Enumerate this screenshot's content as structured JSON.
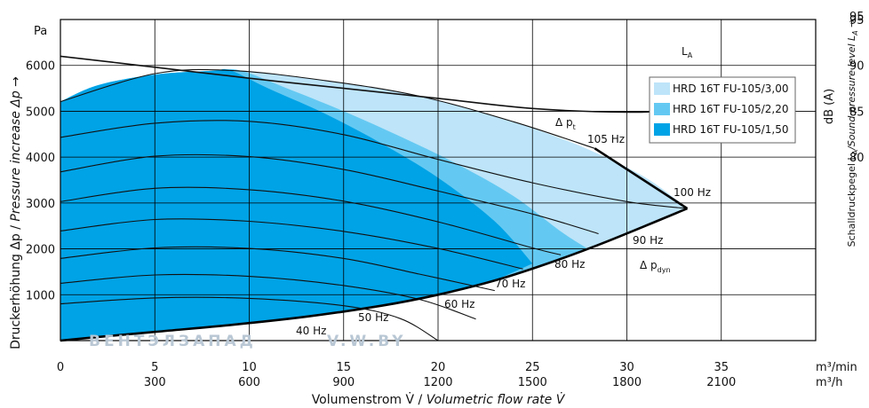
{
  "chart_data": {
    "type": "area",
    "x_axis": {
      "label_de": "Volumenstrom V̇ / ",
      "label_en": "Volumetric flow rate V̇",
      "unit_primary": "m³/min",
      "unit_secondary": "m³/h",
      "range": [
        0,
        40
      ],
      "ticks_primary": [
        "0",
        "5",
        "10",
        "15",
        "20",
        "25",
        "30",
        "35"
      ],
      "ticks_secondary": [
        "",
        "300",
        "600",
        "900",
        "1200",
        "1500",
        "1800",
        "2100"
      ]
    },
    "y_axis": {
      "label_de": "Druckerhöhung Δp / ",
      "label_en": "Pressure increase  Δp →",
      "unit": "Pa",
      "range": [
        0,
        7000
      ],
      "ticks": [
        "1000",
        "2000",
        "3000",
        "4000",
        "5000",
        "6000"
      ]
    },
    "y2_axis": {
      "unit": "dB (A)",
      "label": "Schalldruckpegel L",
      "label_sub": "A",
      "label_en": "/Sound pressure level L",
      "label_en_sub": "A",
      "arrow": " →",
      "range": [
        75,
        95
      ],
      "ticks": [
        "80",
        "85",
        "90",
        "95"
      ]
    },
    "series": [
      {
        "name": "HRD 16T FU-105/3,00",
        "color": "#bde4f9",
        "boundary": [
          [
            0,
            5210
          ],
          [
            2,
            5570
          ],
          [
            5,
            5800
          ],
          [
            8,
            5880
          ],
          [
            9.5,
            5890
          ],
          [
            14,
            5670
          ],
          [
            19,
            5330
          ],
          [
            22,
            5000
          ],
          [
            25,
            4630
          ],
          [
            28,
            4160
          ],
          [
            31,
            3550
          ],
          [
            33.2,
            2880
          ]
        ]
      },
      {
        "name": "HRD 16T FU-105/2,20",
        "color": "#64c9f2",
        "boundary": [
          [
            0,
            5210
          ],
          [
            2,
            5570
          ],
          [
            5,
            5800
          ],
          [
            8,
            5880
          ],
          [
            9.5,
            5890
          ],
          [
            12,
            5500
          ],
          [
            15,
            5000
          ],
          [
            18,
            4450
          ],
          [
            21,
            3850
          ],
          [
            24,
            3150
          ],
          [
            26.5,
            2380
          ],
          [
            27.9,
            2010
          ]
        ]
      },
      {
        "name": "HRD 16T FU-105/1,50",
        "color": "#00a3e6",
        "boundary": [
          [
            0,
            5210
          ],
          [
            2,
            5570
          ],
          [
            5,
            5800
          ],
          [
            8,
            5880
          ],
          [
            9,
            5890
          ],
          [
            11,
            5500
          ],
          [
            14,
            4950
          ],
          [
            17,
            4300
          ],
          [
            20,
            3550
          ],
          [
            23,
            2600
          ],
          [
            25,
            1680
          ]
        ]
      }
    ],
    "system_curve": [
      [
        0,
        0
      ],
      [
        2,
        80
      ],
      [
        5,
        190
      ],
      [
        9,
        340
      ],
      [
        13,
        520
      ],
      [
        17,
        760
      ],
      [
        20,
        1000
      ],
      [
        23,
        1310
      ],
      [
        26,
        1710
      ],
      [
        29,
        2170
      ],
      [
        33.2,
        2880
      ]
    ],
    "max_line": [
      [
        28.3,
        4190
      ],
      [
        33.2,
        2880
      ]
    ],
    "speed_curves": [
      {
        "label": "40 Hz",
        "points": [
          [
            0,
            800
          ],
          [
            5,
            930
          ],
          [
            10,
            920
          ],
          [
            15,
            760
          ],
          [
            18,
            480
          ],
          [
            20,
            0
          ]
        ]
      },
      {
        "label": "50 Hz",
        "points": [
          [
            0,
            1250
          ],
          [
            5,
            1430
          ],
          [
            10,
            1400
          ],
          [
            15,
            1200
          ],
          [
            19,
            900
          ],
          [
            22,
            470
          ]
        ]
      },
      {
        "label": "60 Hz",
        "points": [
          [
            0,
            1790
          ],
          [
            5,
            2020
          ],
          [
            10,
            2010
          ],
          [
            15,
            1790
          ],
          [
            19,
            1450
          ],
          [
            23,
            1090
          ]
        ]
      },
      {
        "label": "70 Hz",
        "points": [
          [
            0,
            2390
          ],
          [
            5,
            2640
          ],
          [
            10,
            2600
          ],
          [
            15,
            2380
          ],
          [
            20,
            2010
          ],
          [
            24.5,
            1560
          ]
        ]
      },
      {
        "label": "80 Hz",
        "points": [
          [
            0,
            3030
          ],
          [
            5,
            3320
          ],
          [
            10,
            3290
          ],
          [
            15,
            3040
          ],
          [
            20,
            2590
          ],
          [
            25,
            2020
          ],
          [
            26.5,
            1870
          ]
        ]
      },
      {
        "label": "90 Hz",
        "points": [
          [
            0,
            3680
          ],
          [
            5,
            4020
          ],
          [
            10,
            4010
          ],
          [
            15,
            3730
          ],
          [
            20,
            3260
          ],
          [
            25,
            2760
          ],
          [
            28.5,
            2330
          ]
        ]
      },
      {
        "label": "100 Hz",
        "points": [
          [
            0,
            4430
          ],
          [
            5,
            4740
          ],
          [
            10,
            4780
          ],
          [
            15,
            4490
          ],
          [
            20,
            3950
          ],
          [
            25,
            3440
          ],
          [
            30,
            3030
          ],
          [
            33.2,
            2880
          ]
        ]
      },
      {
        "label": "105 Hz",
        "points": [
          [
            0,
            5210
          ],
          [
            5,
            5820
          ],
          [
            9,
            5890
          ],
          [
            14,
            5670
          ],
          [
            19,
            5330
          ],
          [
            24,
            4770
          ],
          [
            28.3,
            4190
          ]
        ]
      }
    ],
    "sound_curve": {
      "label": "L",
      "label_sub": "A",
      "points": [
        [
          0,
          91
        ],
        [
          5,
          89.8
        ],
        [
          10,
          88.6
        ],
        [
          15,
          87.5
        ],
        [
          20,
          86.4
        ],
        [
          25,
          85.3
        ],
        [
          30,
          84.9
        ],
        [
          33,
          85.2
        ],
        [
          35,
          86
        ]
      ]
    },
    "annotations": {
      "dp_total": "Δ p",
      "dp_total_sub": "t",
      "dp_dynamic": "Δ p",
      "dp_dynamic_sub": "dyn"
    },
    "grid": true,
    "legend_position": "top-right"
  },
  "watermark": {
    "left": "ВЕНТЭЛЗАПАД",
    "right": "V.W.BY"
  }
}
